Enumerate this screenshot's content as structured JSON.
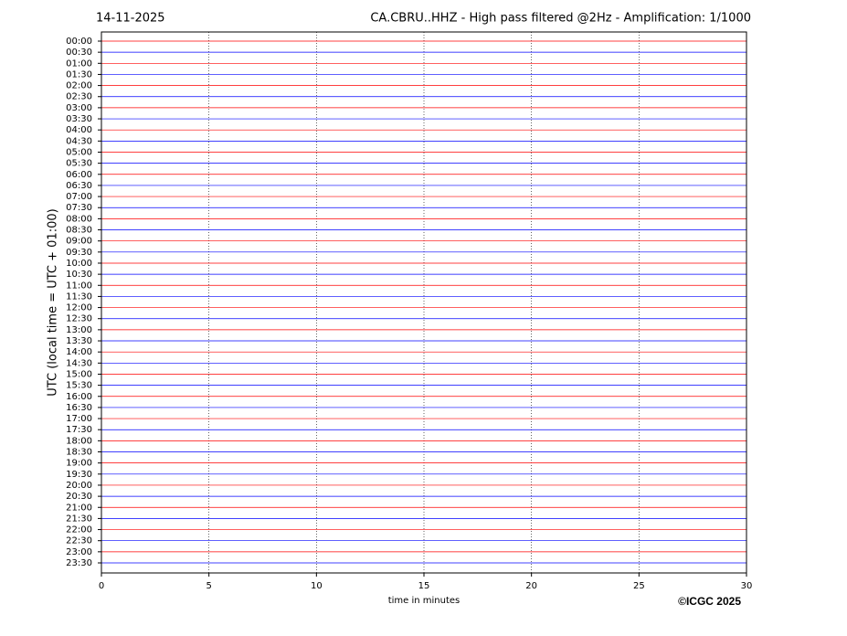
{
  "chart_data": {
    "type": "helicorder",
    "date": "14-11-2025",
    "title": "CA.CBRU..HHZ - High pass filtered @2Hz - Amplification: 1/1000",
    "xlabel": "time in minutes",
    "ylabel": "UTC (local time = UTC + 01:00)",
    "credit": "©ICGC 2025",
    "categories": [
      "00:00",
      "00:30",
      "01:00",
      "01:30",
      "02:00",
      "02:30",
      "03:00",
      "03:30",
      "04:00",
      "04:30",
      "05:00",
      "05:30",
      "06:00",
      "06:30",
      "07:00",
      "07:30",
      "08:00",
      "08:30",
      "09:00",
      "09:30",
      "10:00",
      "10:30",
      "11:00",
      "11:30",
      "12:00",
      "12:30",
      "13:00",
      "13:30",
      "14:00",
      "14:30",
      "15:00",
      "15:30",
      "16:00",
      "16:30",
      "17:00",
      "17:30",
      "18:00",
      "18:30",
      "19:00",
      "19:30",
      "20:00",
      "20:30",
      "21:00",
      "21:30",
      "22:00",
      "22:30",
      "23:00",
      "23:30"
    ],
    "colors": [
      "#ff0000",
      "#0000ff"
    ],
    "xlim": [
      0,
      30
    ],
    "xticks": [
      0,
      5,
      10,
      15,
      20,
      25,
      30
    ],
    "grid": true
  }
}
